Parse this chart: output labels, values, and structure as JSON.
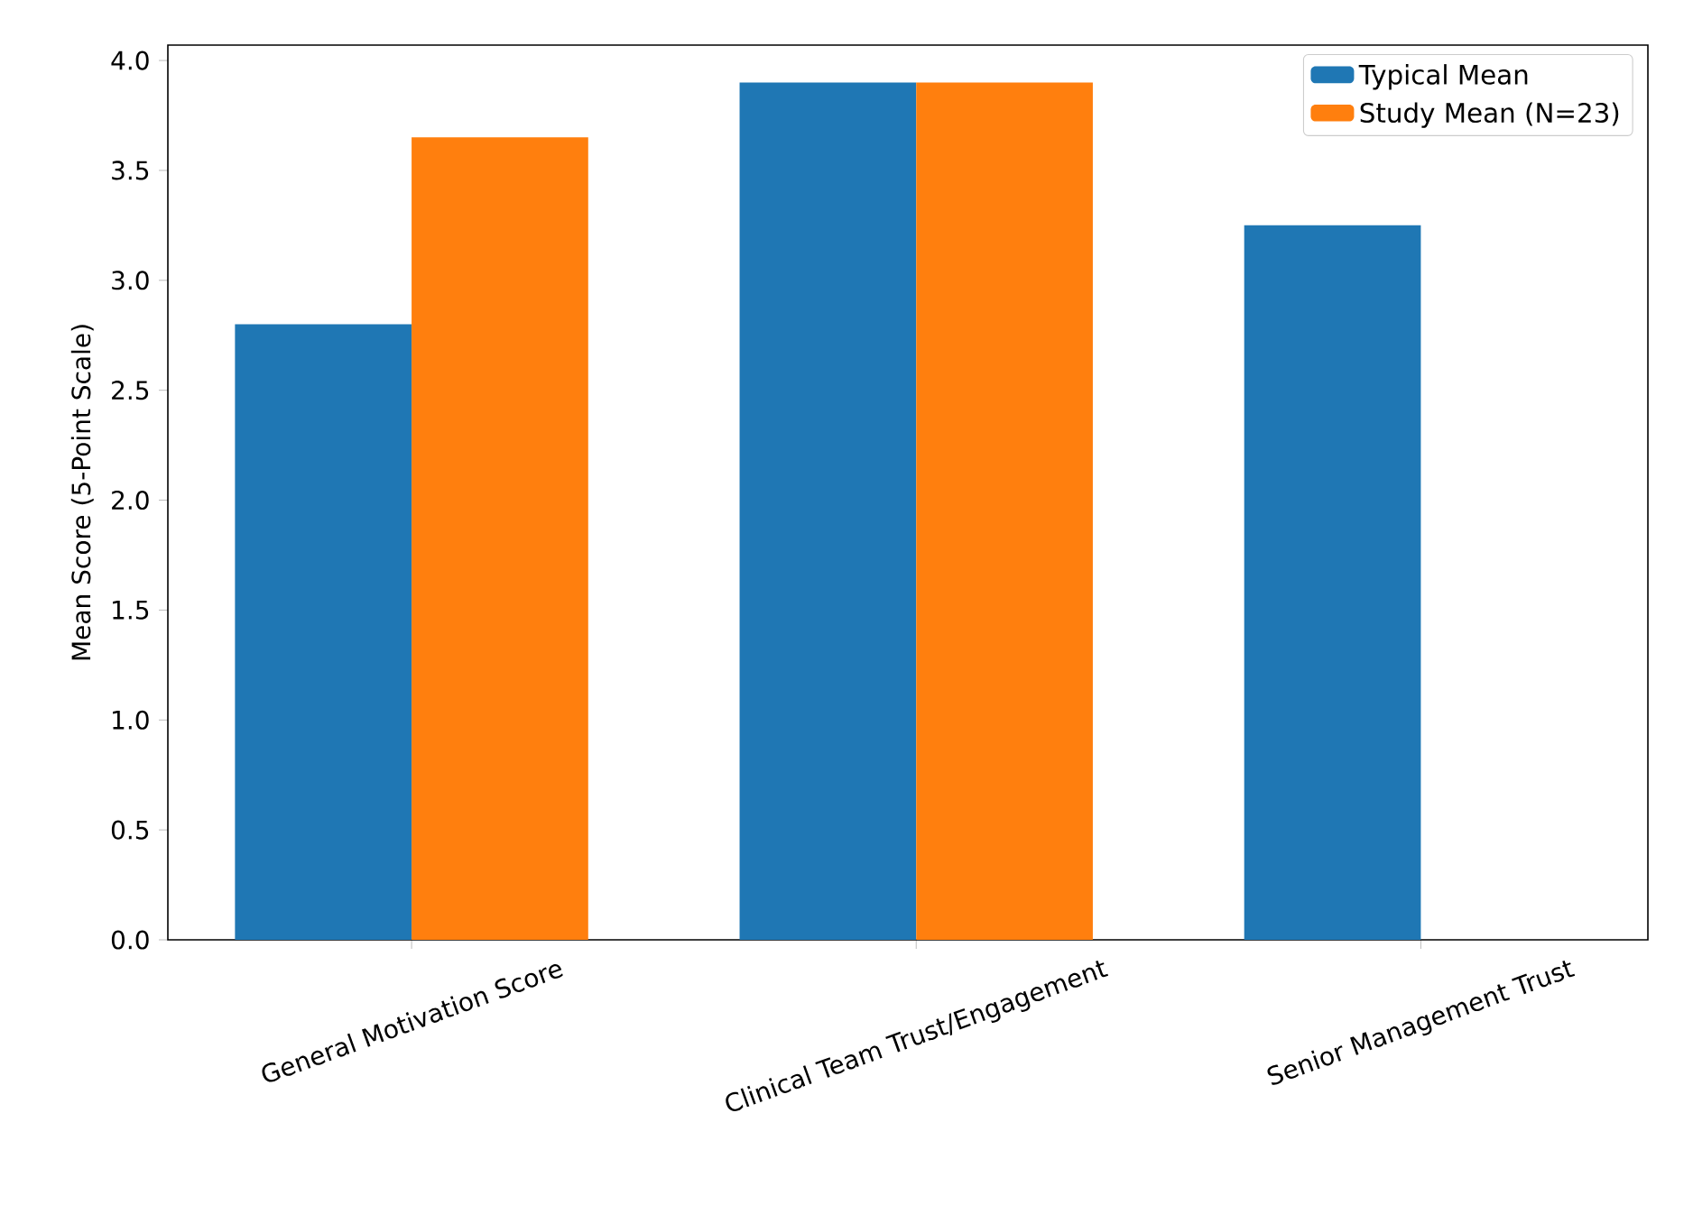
{
  "chart_data": {
    "type": "bar",
    "ylabel": "Mean Score (5-Point Scale)",
    "categories": [
      "General Motivation Score",
      "Clinical Team Trust/Engagement",
      "Senior Management Trust"
    ],
    "series": [
      {
        "name": "Typical Mean",
        "color": "#1f77b4",
        "values": [
          2.8,
          3.9,
          3.25
        ]
      },
      {
        "name": "Study Mean (N=23)",
        "color": "#ff7f0e",
        "values": [
          3.65,
          3.9,
          null
        ]
      }
    ],
    "ylim": [
      0,
      4.07
    ],
    "yticks": [
      {
        "value": 0,
        "label": "0.0"
      },
      {
        "value": 0.5,
        "label": "0.5"
      },
      {
        "value": 1,
        "label": "1.0"
      },
      {
        "value": 1.5,
        "label": "1.5"
      },
      {
        "value": 2,
        "label": "2.0"
      },
      {
        "value": 2.5,
        "label": "2.5"
      },
      {
        "value": 3,
        "label": "3.0"
      },
      {
        "value": 3.5,
        "label": "3.5"
      },
      {
        "value": 4,
        "label": "4.0"
      }
    ],
    "grid": false,
    "legend": "top right"
  }
}
